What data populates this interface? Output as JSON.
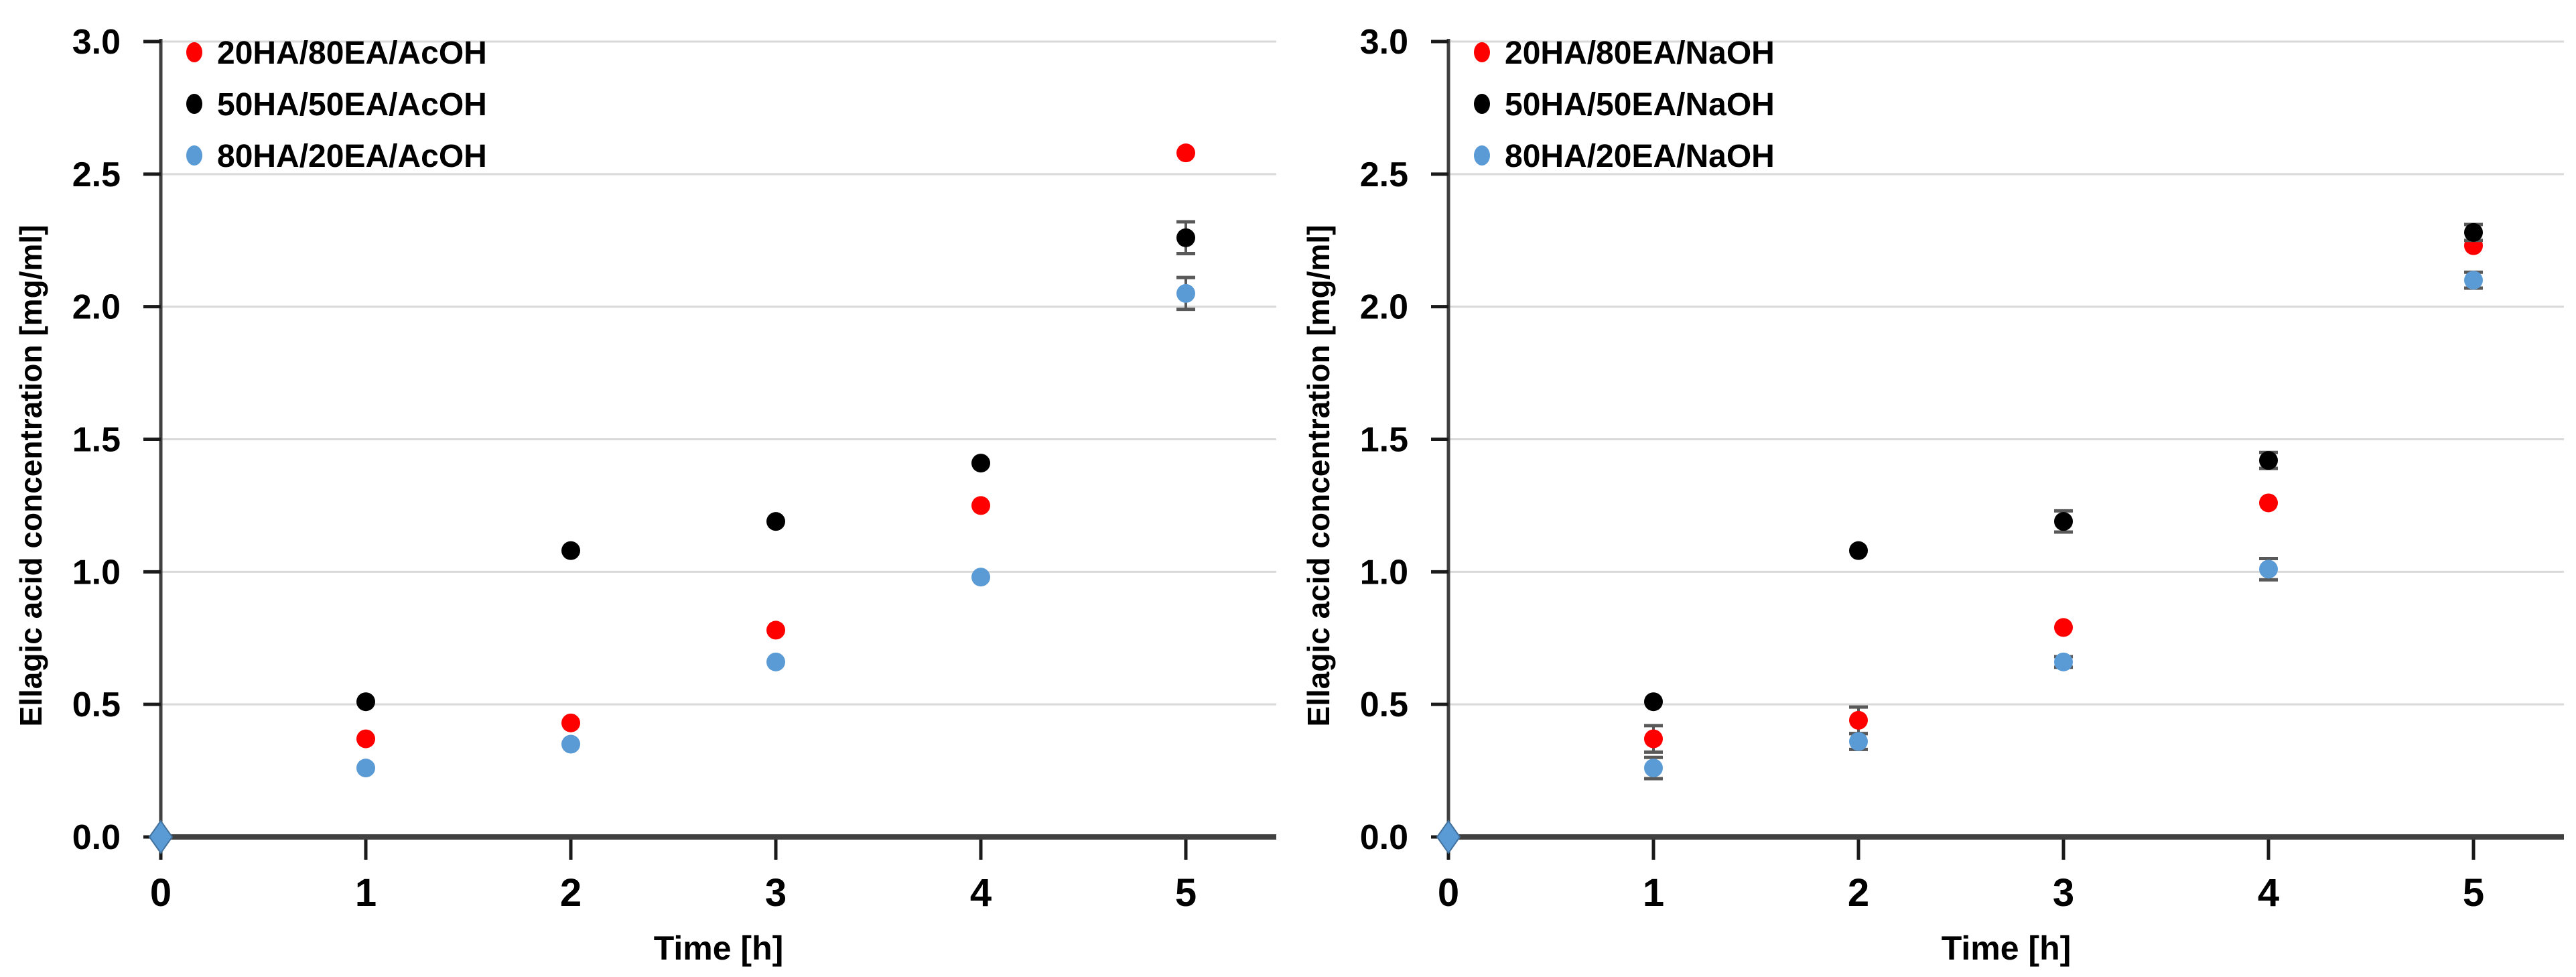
{
  "figure": {
    "background": "#ffffff",
    "grid_color": "#d9d9d9",
    "axis_color": "#404040",
    "error_bar_color": "#595959"
  },
  "chart_data": [
    {
      "type": "scatter",
      "panel": "left",
      "title": "",
      "xlabel": "Time [h]",
      "ylabel": "Ellagic acid concentration [mg/ml]",
      "xlim": [
        0,
        5.45
      ],
      "ylim": [
        0,
        3.0
      ],
      "xticks": [
        "0",
        "1",
        "2",
        "3",
        "4",
        "5"
      ],
      "ytick_labels": [
        "0.0",
        "0.5",
        "1.0",
        "1.5",
        "2.0",
        "2.5",
        "3.0"
      ],
      "grid": "horizontal",
      "legend_position": "top-left-inside",
      "origin_marker": {
        "shape": "diamond",
        "color": "#5B9BD5",
        "edge": "#41719C",
        "x": 0,
        "y": 0.0
      },
      "series": [
        {
          "name": "20HA/80EA/AcOH",
          "color": "#FF0000",
          "marker": "circle",
          "x": [
            0,
            1,
            2,
            3,
            4,
            5
          ],
          "y": [
            0,
            0.37,
            0.43,
            0.78,
            1.25,
            2.58
          ],
          "yerr": [
            0,
            0,
            0,
            0,
            0,
            0
          ]
        },
        {
          "name": "50HA/50EA/AcOH",
          "color": "#000000",
          "marker": "circle",
          "x": [
            0,
            1,
            2,
            3,
            4,
            5
          ],
          "y": [
            0,
            0.51,
            1.08,
            1.19,
            1.41,
            2.26
          ],
          "yerr": [
            0,
            0,
            0,
            0,
            0,
            0.06
          ]
        },
        {
          "name": "80HA/20EA/AcOH",
          "color": "#5B9BD5",
          "marker": "circle",
          "x": [
            0,
            1,
            2,
            3,
            4,
            5
          ],
          "y": [
            0,
            0.26,
            0.35,
            0.66,
            0.98,
            2.05
          ],
          "yerr": [
            0,
            0,
            0,
            0,
            0,
            0.06
          ]
        }
      ]
    },
    {
      "type": "scatter",
      "panel": "right",
      "title": "",
      "xlabel": "Time [h]",
      "ylabel": "Ellagic acid concentration [mg/ml]",
      "xlim": [
        0,
        5.45
      ],
      "ylim": [
        0,
        3.0
      ],
      "xticks": [
        "0",
        "1",
        "2",
        "3",
        "4",
        "5"
      ],
      "ytick_labels": [
        "0.0",
        "0.5",
        "1.0",
        "1.5",
        "2.0",
        "2.5",
        "3.0"
      ],
      "grid": "horizontal",
      "legend_position": "top-left-inside",
      "origin_marker": {
        "shape": "diamond",
        "color": "#5B9BD5",
        "edge": "#41719C",
        "x": 0,
        "y": 0.0
      },
      "series": [
        {
          "name": "20HA/80EA/NaOH",
          "color": "#FF0000",
          "marker": "circle",
          "x": [
            0,
            1,
            2,
            3,
            4,
            5
          ],
          "y": [
            0,
            0.37,
            0.44,
            0.79,
            1.26,
            2.23
          ],
          "yerr": [
            0,
            0.05,
            0.05,
            0,
            0,
            0
          ]
        },
        {
          "name": "50HA/50EA/NaOH",
          "color": "#000000",
          "marker": "circle",
          "x": [
            0,
            1,
            2,
            3,
            4,
            5
          ],
          "y": [
            0,
            0.51,
            1.08,
            1.19,
            1.42,
            2.28
          ],
          "yerr": [
            0,
            0,
            0,
            0.04,
            0.03,
            0.03
          ]
        },
        {
          "name": "80HA/20EA/NaOH",
          "color": "#5B9BD5",
          "marker": "circle",
          "x": [
            0,
            1,
            2,
            3,
            4,
            5
          ],
          "y": [
            0,
            0.26,
            0.36,
            0.66,
            1.01,
            2.1
          ],
          "yerr": [
            0,
            0.04,
            0.03,
            0.02,
            0.04,
            0.03
          ]
        }
      ]
    }
  ]
}
